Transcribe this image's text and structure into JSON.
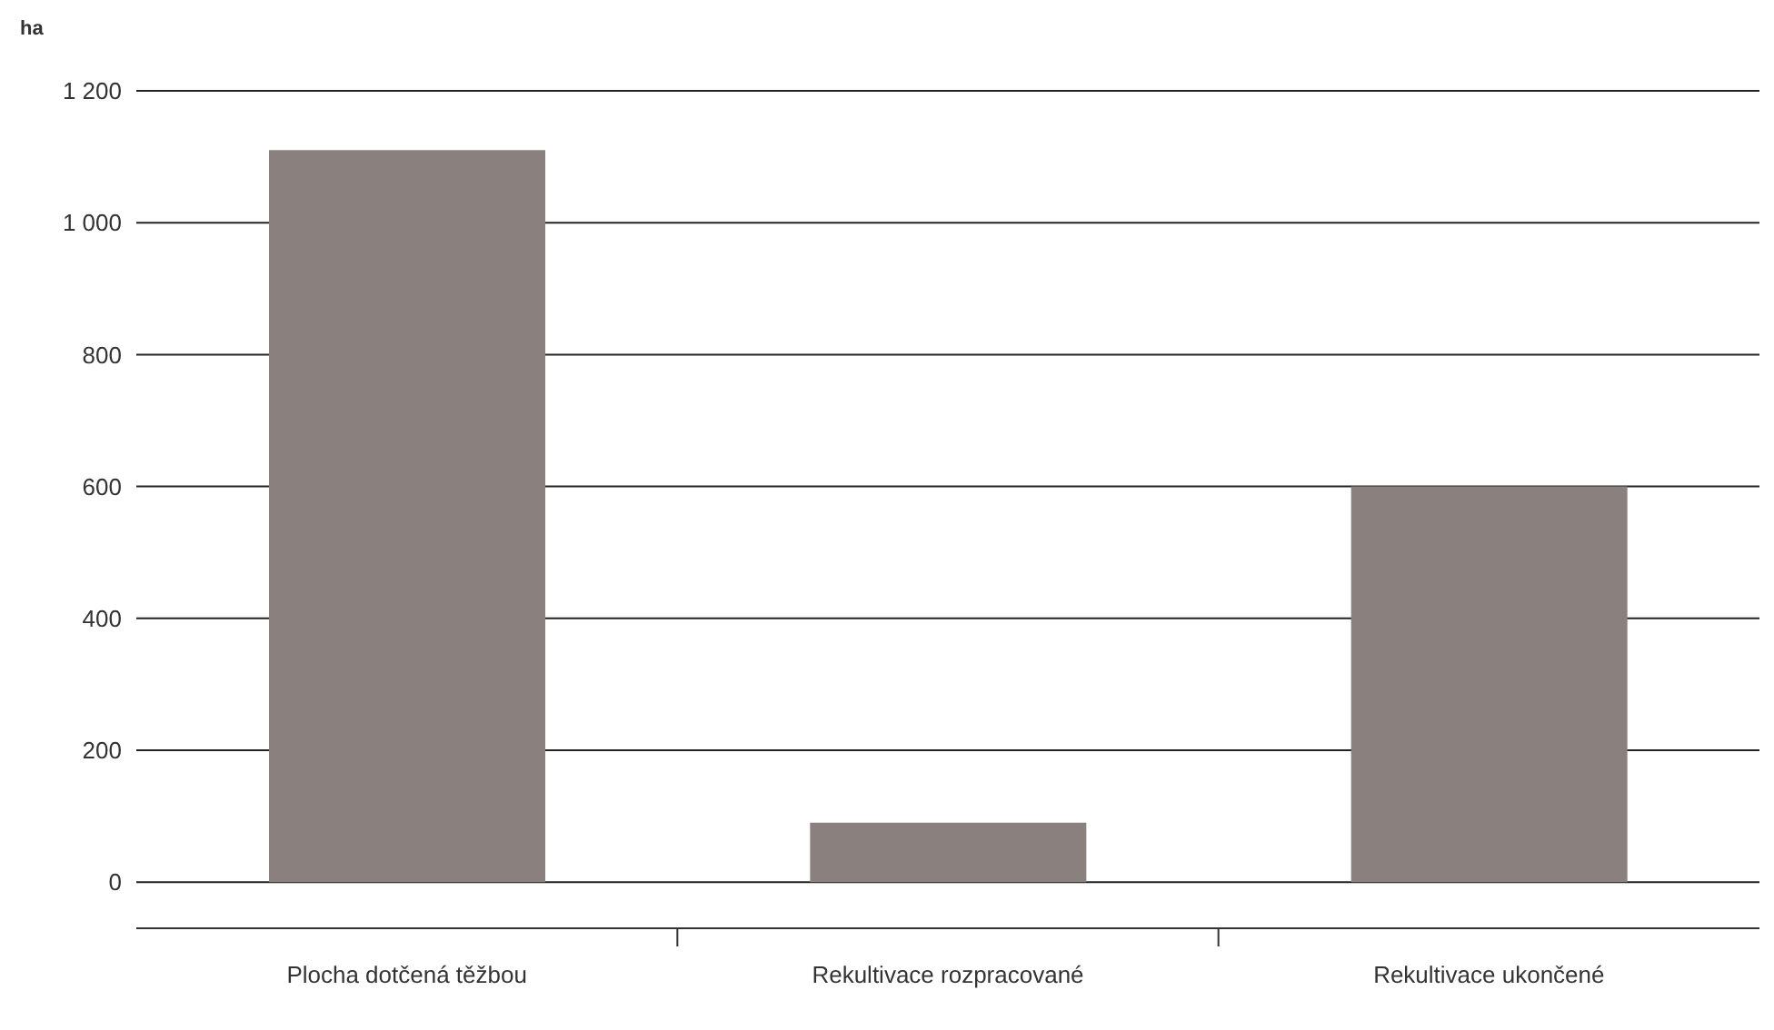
{
  "chart_data": {
    "type": "bar",
    "ylabel": "ha",
    "categories": [
      "Plocha dotčená těžbou",
      "Rekultivace rozpracované",
      "Rekultivace ukončené"
    ],
    "values": [
      1110,
      90,
      600
    ],
    "color": "#8a807d",
    "ylim": [
      -70,
      1200
    ],
    "yticks": [
      0,
      200,
      400,
      600,
      800,
      {
        "value": 1000,
        "label": "1 000"
      },
      {
        "value": 1200,
        "label": "1 200"
      }
    ],
    "grid": "y",
    "legend": false
  }
}
